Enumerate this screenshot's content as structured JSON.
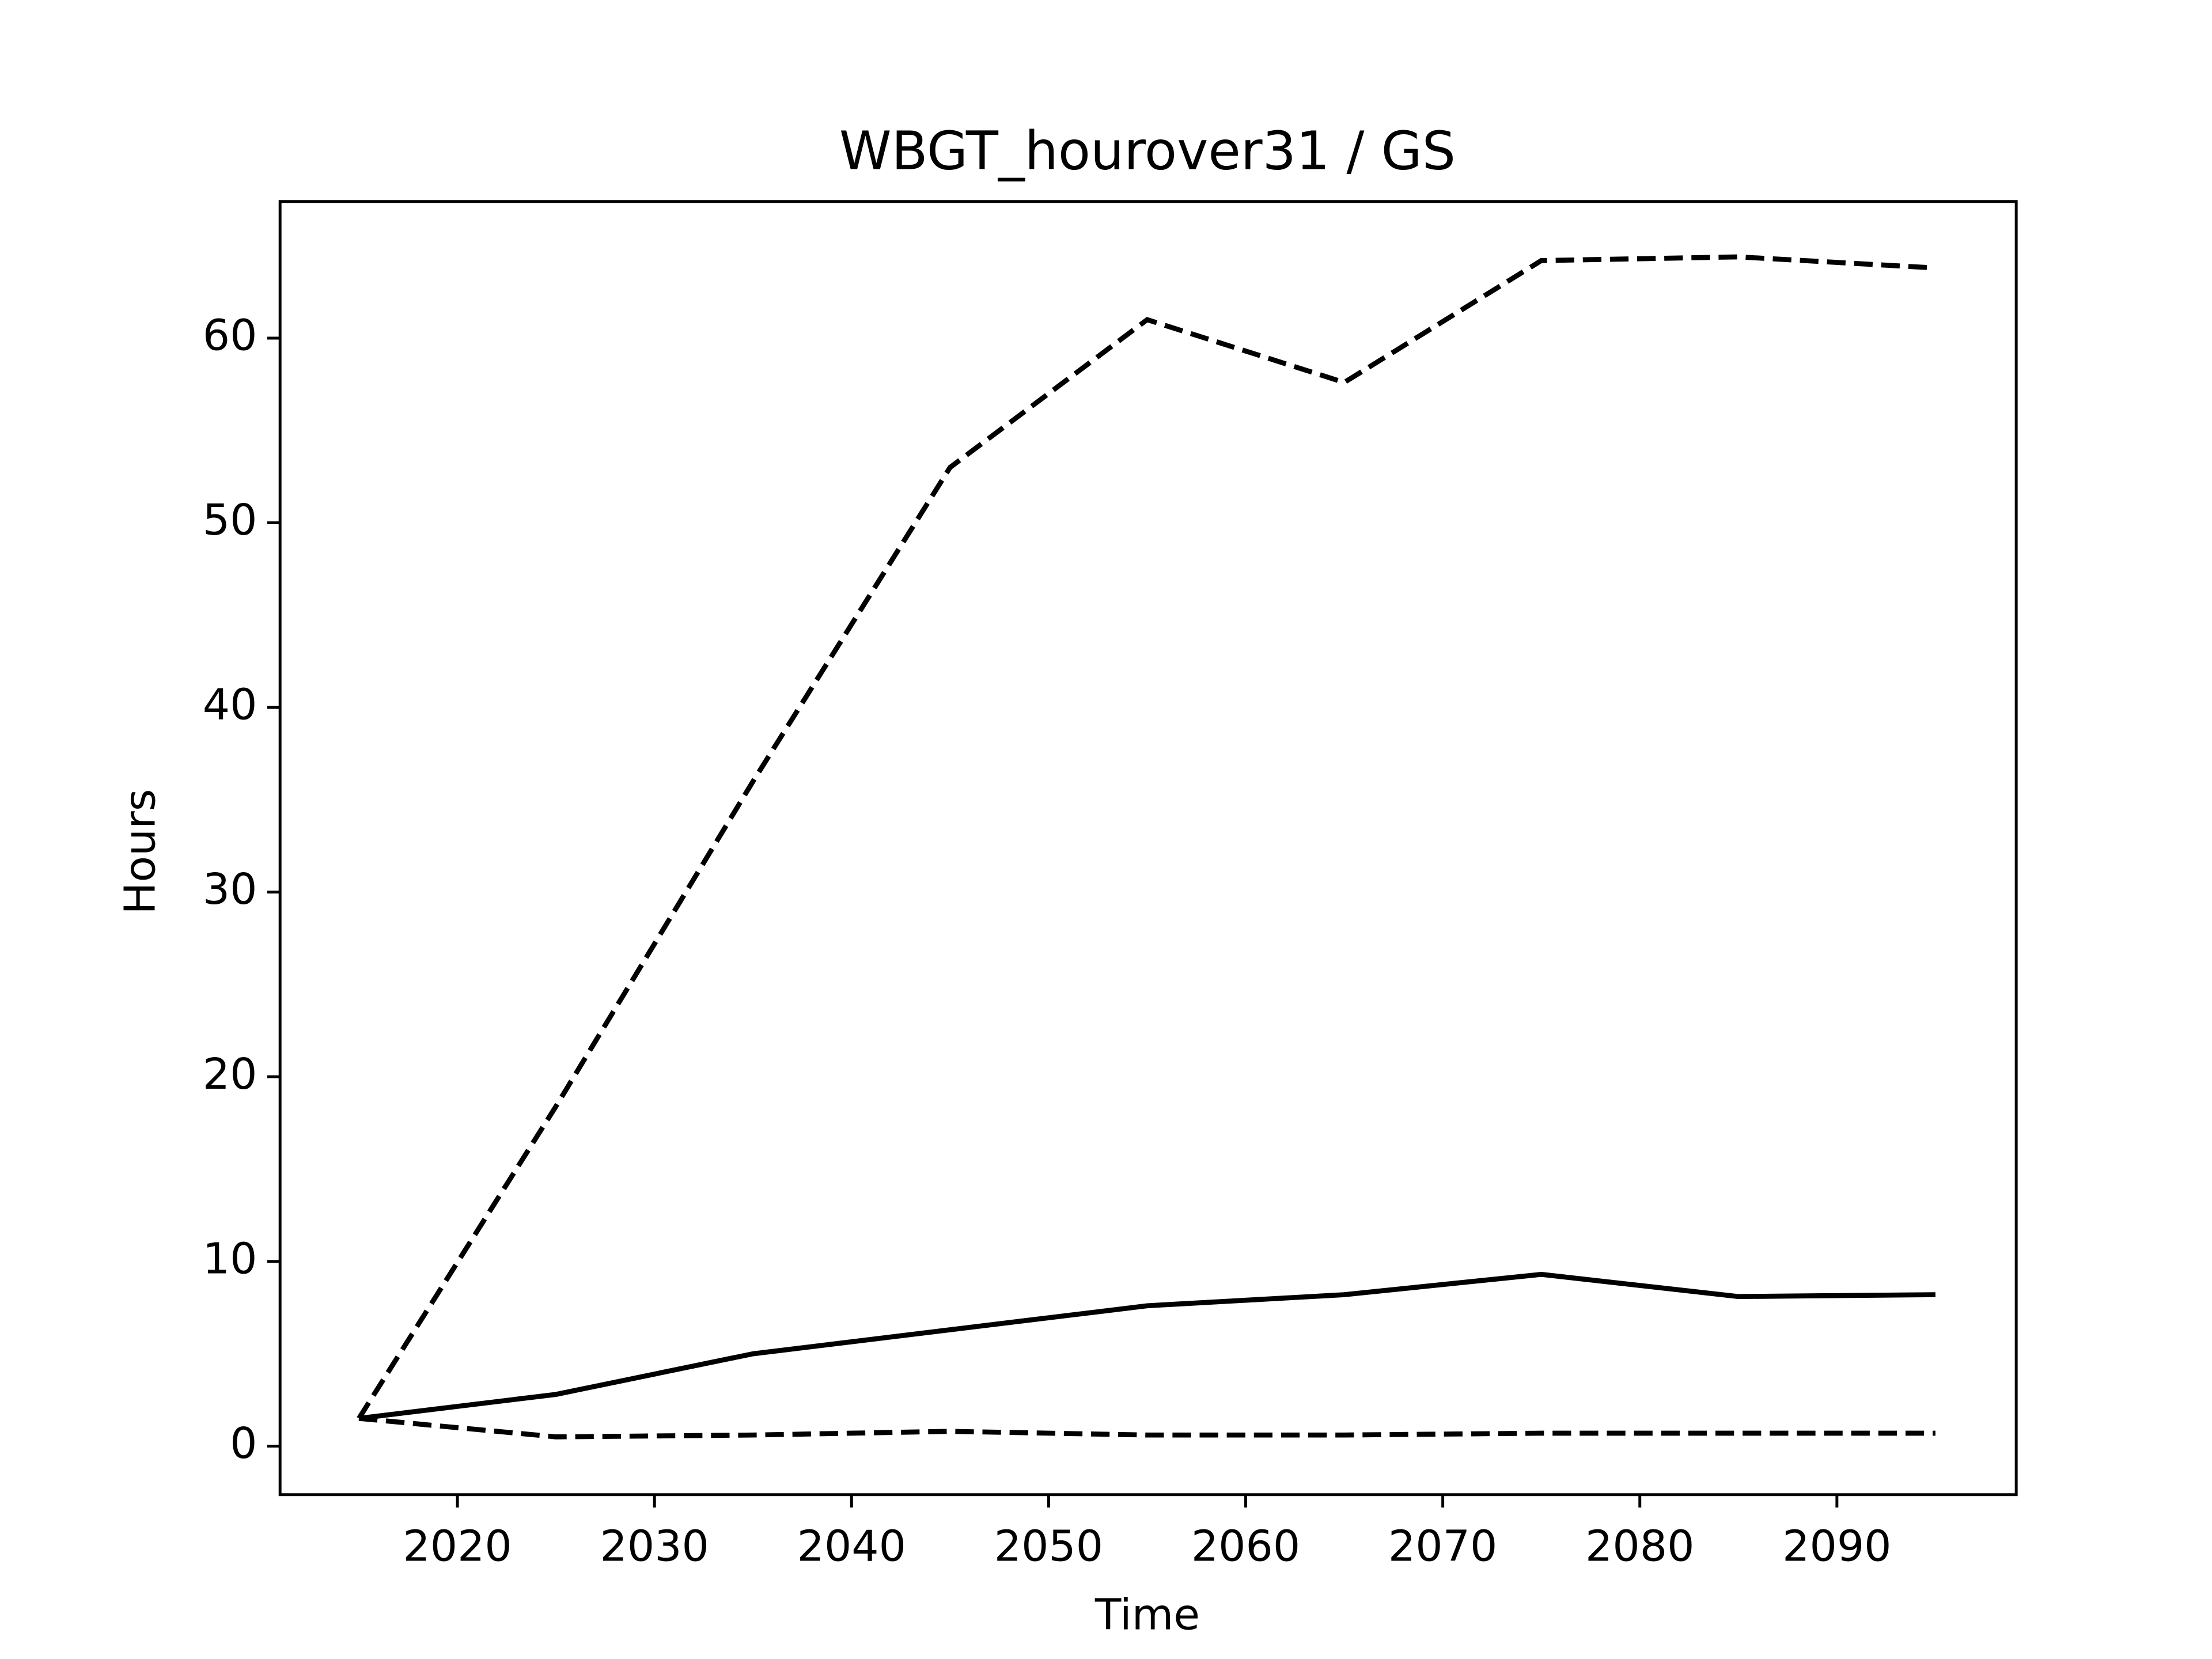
{
  "chart_data": {
    "type": "line",
    "title": "WBGT_hourover31 / GS",
    "x_label": "Time",
    "y_label": "Hours",
    "x": [
      2015,
      2025,
      2035,
      2045,
      2055,
      2065,
      2075,
      2085,
      2095
    ],
    "series": [
      {
        "color": "#000000",
        "linestyle": "solid",
        "values": [
          1.5,
          2.8,
          5.0,
          6.3,
          7.6,
          8.2,
          9.3,
          8.1,
          8.2
        ]
      },
      {
        "color": "#000000",
        "linestyle": "dashed",
        "values": [
          1.5,
          18.4,
          36.0,
          53.0,
          61.0,
          57.6,
          64.2,
          64.4,
          63.8
        ]
      },
      {
        "color": "#000000",
        "linestyle": "dashed",
        "values": [
          1.5,
          0.5,
          0.6,
          0.8,
          0.6,
          0.6,
          0.7,
          0.7,
          0.7
        ]
      }
    ],
    "xlim": [
      2011,
      2099.1
    ],
    "xticks": [
      2020,
      2030,
      2040,
      2050,
      2060,
      2070,
      2080,
      2090
    ],
    "ylim": [
      -2.63,
      67.4
    ],
    "yticks": [
      0,
      10,
      20,
      30,
      40,
      50,
      60
    ],
    "grid": false
  }
}
